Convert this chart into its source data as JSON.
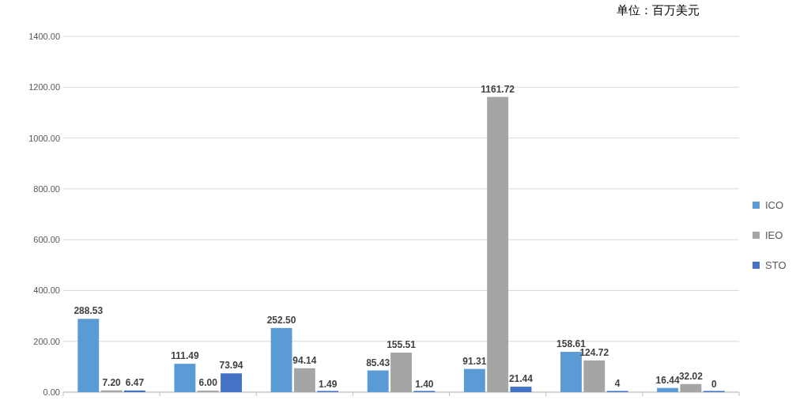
{
  "chart_data": {
    "type": "bar",
    "categories": [
      null,
      null,
      null,
      null,
      null,
      null,
      null
    ],
    "series": [
      {
        "name": "ICO",
        "color": "#5b9bd5",
        "values": [
          288.53,
          111.49,
          252.5,
          85.43,
          91.31,
          158.61,
          16.44
        ],
        "value_labels": [
          "288.53",
          "111.49",
          "252.50",
          "85.43",
          "91.31",
          "158.61",
          "16.44"
        ]
      },
      {
        "name": "IEO",
        "color": "#a5a5a5",
        "values": [
          7.2,
          6.0,
          94.14,
          155.51,
          1161.72,
          124.72,
          32.02
        ],
        "value_labels": [
          "7.20",
          "6.00",
          "94.14",
          "155.51",
          "1161.72",
          "124.72",
          "32.02"
        ]
      },
      {
        "name": "STO",
        "color": "#4472c4",
        "values": [
          6.47,
          73.94,
          1.49,
          1.4,
          21.44,
          4,
          0
        ],
        "value_labels": [
          "6.47",
          "73.94",
          "1.49",
          "1.40",
          "21.44",
          "4",
          "0"
        ]
      }
    ],
    "ylim": [
      0,
      1400
    ],
    "yticks": [
      {
        "value": 0,
        "label": "0.00"
      },
      {
        "value": 200,
        "label": "200.00"
      },
      {
        "value": 400,
        "label": "400.00"
      },
      {
        "value": 600,
        "label": "600.00"
      },
      {
        "value": 800,
        "label": "800.00"
      },
      {
        "value": 1000,
        "label": "1000.00"
      },
      {
        "value": 1200,
        "label": "1200.00"
      },
      {
        "value": 1400,
        "label": "1400.00"
      }
    ],
    "grid": "y",
    "legend": "right",
    "annotations": [
      "单位：百万美元"
    ]
  }
}
